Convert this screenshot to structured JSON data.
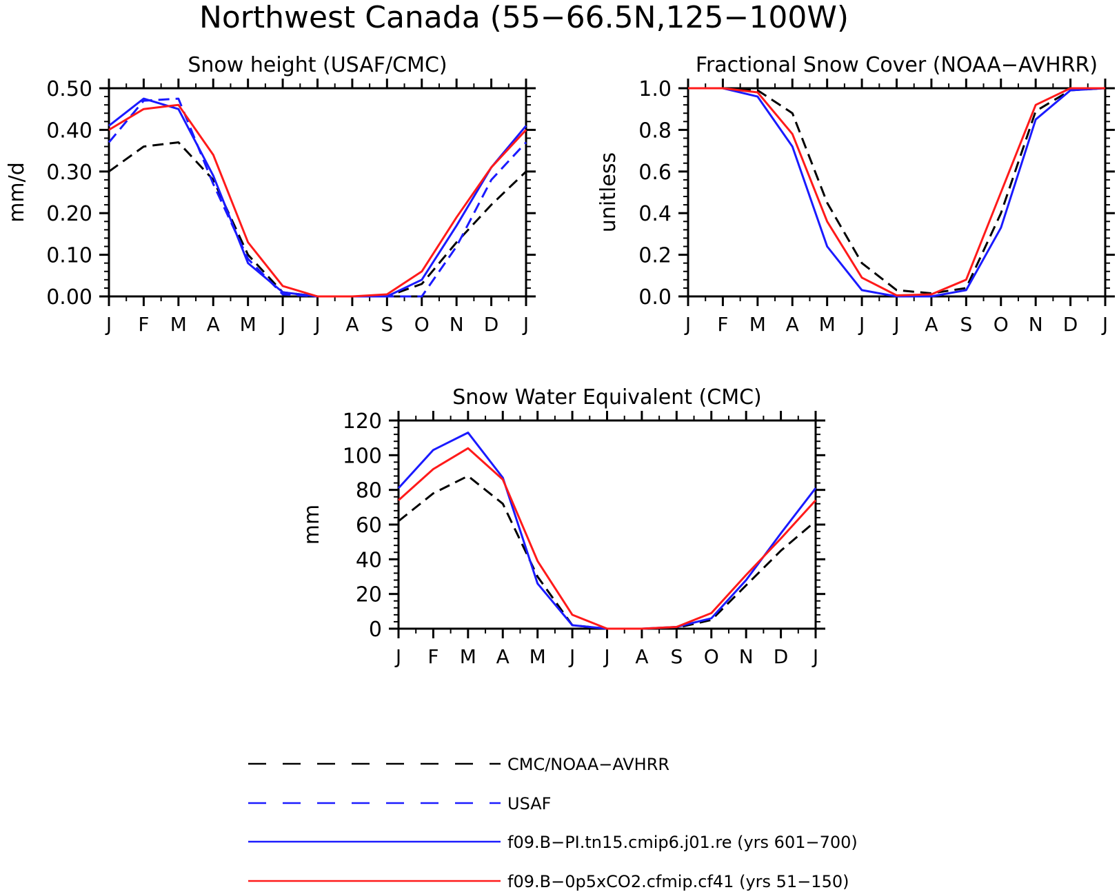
{
  "figure": {
    "title": "Northwest Canada (55−66.5N,125−100W)"
  },
  "colors": {
    "obs_black": "#000000",
    "usaf_blue": "#1a1aff",
    "model_blue": "#1a1aff",
    "model_red": "#ff1a1a"
  },
  "legend": {
    "items": [
      {
        "label": "CMC/NOAA−AVHRR",
        "color": "#000000",
        "dashed": true
      },
      {
        "label": "USAF",
        "color": "#1a1aff",
        "dashed": true
      },
      {
        "label": "f09.B−PI.tn15.cmip6.j01.re (yrs 601−700)",
        "color": "#1a1aff",
        "dashed": false
      },
      {
        "label": "f09.B−0p5xCO2.cfmip.cf41 (yrs 51−150)",
        "color": "#ff1a1a",
        "dashed": false
      }
    ]
  },
  "chart_data": [
    {
      "type": "line",
      "title": "Snow height (USAF/CMC)",
      "xlabel": "",
      "ylabel": "mm/d",
      "categories": [
        "J",
        "F",
        "M",
        "A",
        "M",
        "J",
        "J",
        "A",
        "S",
        "O",
        "N",
        "D",
        "J"
      ],
      "ylim": [
        0,
        0.5
      ],
      "yticks": [
        "0.00",
        "0.10",
        "0.20",
        "0.30",
        "0.40",
        "0.50"
      ],
      "series": [
        {
          "name": "CMC/NOAA−AVHRR",
          "color": "#000000",
          "dashed": true,
          "values": [
            0.3,
            0.36,
            0.37,
            0.28,
            0.1,
            0.01,
            0.0,
            0.0,
            0.0,
            0.03,
            0.13,
            0.22,
            0.3
          ]
        },
        {
          "name": "USAF",
          "color": "#1a1aff",
          "dashed": true,
          "values": [
            0.37,
            0.47,
            0.475,
            0.27,
            0.09,
            0.005,
            0.0,
            0.0,
            0.0,
            0.0,
            0.12,
            0.28,
            0.37
          ]
        },
        {
          "name": "f09.B−PI.tn15.cmip6.j01.re (yrs 601−700)",
          "color": "#1a1aff",
          "dashed": false,
          "values": [
            0.41,
            0.475,
            0.45,
            0.29,
            0.08,
            0.01,
            0.0,
            0.0,
            0.0,
            0.04,
            0.17,
            0.31,
            0.41
          ]
        },
        {
          "name": "f09.B−0p5xCO2.cfmip.cf41 (yrs 51−150)",
          "color": "#ff1a1a",
          "dashed": false,
          "values": [
            0.4,
            0.45,
            0.46,
            0.34,
            0.13,
            0.025,
            0.0,
            0.0,
            0.005,
            0.06,
            0.19,
            0.31,
            0.4
          ]
        }
      ]
    },
    {
      "type": "line",
      "title": "Fractional Snow Cover (NOAA−AVHRR)",
      "xlabel": "",
      "ylabel": "unitless",
      "categories": [
        "J",
        "F",
        "M",
        "A",
        "M",
        "J",
        "J",
        "A",
        "S",
        "O",
        "N",
        "D",
        "J"
      ],
      "ylim": [
        0,
        1.0
      ],
      "yticks": [
        "0.0",
        "0.2",
        "0.4",
        "0.6",
        "0.8",
        "1.0"
      ],
      "series": [
        {
          "name": "CMC/NOAA−AVHRR",
          "color": "#000000",
          "dashed": true,
          "values": [
            1.0,
            1.0,
            0.99,
            0.88,
            0.45,
            0.16,
            0.03,
            0.015,
            0.04,
            0.4,
            0.89,
            0.99,
            1.0
          ]
        },
        {
          "name": "f09.B−PI.tn15.cmip6.j01.re (yrs 601−700)",
          "color": "#1a1aff",
          "dashed": false,
          "values": [
            1.0,
            1.0,
            0.96,
            0.72,
            0.24,
            0.03,
            0.0,
            0.0,
            0.03,
            0.33,
            0.85,
            0.99,
            1.0
          ]
        },
        {
          "name": "f09.B−0p5xCO2.cfmip.cf41 (yrs 51−150)",
          "color": "#ff1a1a",
          "dashed": false,
          "values": [
            1.0,
            1.0,
            0.98,
            0.78,
            0.36,
            0.09,
            0.005,
            0.01,
            0.08,
            0.5,
            0.92,
            1.0,
            1.0
          ]
        }
      ]
    },
    {
      "type": "line",
      "title": "Snow Water Equivalent (CMC)",
      "xlabel": "",
      "ylabel": "mm",
      "categories": [
        "J",
        "F",
        "M",
        "A",
        "M",
        "J",
        "J",
        "A",
        "S",
        "O",
        "N",
        "D",
        "J"
      ],
      "ylim": [
        0,
        120
      ],
      "yticks": [
        "0",
        "20",
        "40",
        "60",
        "80",
        "100",
        "120"
      ],
      "series": [
        {
          "name": "CMC/NOAA−AVHRR",
          "color": "#000000",
          "dashed": true,
          "values": [
            62,
            78,
            88,
            72,
            30,
            2,
            0,
            0,
            0.5,
            5,
            25,
            45,
            62
          ]
        },
        {
          "name": "f09.B−PI.tn15.cmip6.j01.re (yrs 601−700)",
          "color": "#1a1aff",
          "dashed": false,
          "values": [
            81,
            103,
            113,
            87,
            26,
            2,
            0,
            0,
            1,
            6,
            28,
            55,
            81
          ]
        },
        {
          "name": "f09.B−0p5xCO2.cfmip.cf41 (yrs 51−150)",
          "color": "#ff1a1a",
          "dashed": false,
          "values": [
            74,
            92,
            104,
            86,
            39,
            8,
            0,
            0,
            1,
            9,
            31,
            52,
            74
          ]
        }
      ]
    }
  ]
}
